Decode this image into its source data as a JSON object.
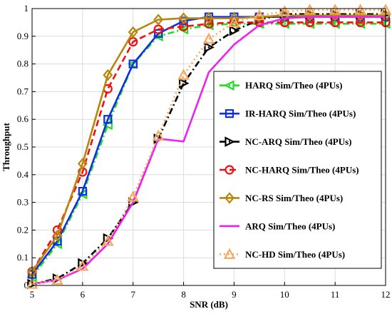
{
  "chart_data": {
    "type": "line",
    "xlabel": "SNR (dB)",
    "ylabel": "Throughput",
    "xlim": [
      5,
      12
    ],
    "ylim": [
      0,
      1
    ],
    "x_ticks": [
      5,
      6,
      7,
      8,
      9,
      10,
      11,
      12
    ],
    "y_ticks": [
      0,
      0.1,
      0.2,
      0.3,
      0.4,
      0.5,
      0.6,
      0.7,
      0.8,
      0.9,
      1
    ],
    "grid": true,
    "legend_position": "right",
    "series": [
      {
        "name": "HARQ Sim/Theo (4PUs)",
        "color": "#22dd22",
        "marker": "triangle-left",
        "dash": "dashdot",
        "x": [
          5,
          5.5,
          6,
          6.5,
          7,
          7.5,
          8,
          8.5,
          9,
          9.5,
          10,
          10.5,
          11,
          11.5,
          12
        ],
        "y": [
          0.03,
          0.15,
          0.33,
          0.58,
          0.8,
          0.9,
          0.925,
          0.94,
          0.945,
          0.945,
          0.945,
          0.945,
          0.945,
          0.945,
          0.945
        ]
      },
      {
        "name": "IR-HARQ Sim/Theo (4PUs)",
        "color": "#1030e0",
        "marker": "square",
        "dash": "solid",
        "x": [
          5,
          5.5,
          6,
          6.5,
          7,
          7.5,
          8,
          8.5,
          9,
          9.5,
          10,
          10.5,
          11,
          11.5,
          12
        ],
        "y": [
          0.04,
          0.16,
          0.34,
          0.6,
          0.8,
          0.91,
          0.955,
          0.97,
          0.97,
          0.97,
          0.97,
          0.97,
          0.97,
          0.97,
          0.97
        ]
      },
      {
        "name": "NC-ARQ Sim/Theo (4PUs)",
        "color": "#000000",
        "marker": "triangle-right",
        "dash": "dashdot",
        "x": [
          5,
          5.5,
          6,
          6.5,
          7,
          7.5,
          8,
          8.5,
          9,
          9.5,
          10,
          10.5,
          11,
          11.5,
          12
        ],
        "y": [
          0.005,
          0.025,
          0.08,
          0.17,
          0.3,
          0.53,
          0.73,
          0.86,
          0.92,
          0.96,
          0.98,
          0.98,
          0.98,
          0.98,
          0.98
        ]
      },
      {
        "name": "NC-HARQ Sim/Theo (4PUs)",
        "color": "#ee1111",
        "marker": "circle",
        "dash": "dashed",
        "x": [
          5,
          5.5,
          6,
          6.5,
          7,
          7.5,
          8,
          8.5,
          9,
          9.5,
          10,
          10.5,
          11,
          11.5,
          12
        ],
        "y": [
          0.05,
          0.2,
          0.41,
          0.71,
          0.88,
          0.925,
          0.935,
          0.945,
          0.95,
          0.95,
          0.95,
          0.95,
          0.95,
          0.95,
          0.95
        ]
      },
      {
        "name": "NC-RS Sim/Theo (4PUs)",
        "color": "#b8860b",
        "marker": "diamond",
        "dash": "solid",
        "x": [
          5,
          5.5,
          6,
          6.5,
          7,
          7.5,
          8,
          8.5,
          9,
          9.5,
          10,
          10.5,
          11,
          11.5,
          12
        ],
        "y": [
          0.05,
          0.18,
          0.44,
          0.76,
          0.915,
          0.96,
          0.965,
          0.965,
          0.965,
          0.97,
          0.975,
          0.975,
          0.975,
          0.975,
          0.975
        ]
      },
      {
        "name": "ARQ Sim/Theo (4PUs)",
        "color": "#ee22ee",
        "marker": "none",
        "dash": "solid",
        "x": [
          5,
          5.5,
          6,
          6.5,
          7,
          7.5,
          8,
          8.5,
          9,
          9.5,
          10,
          10.5,
          11,
          11.5,
          12
        ],
        "y": [
          0.005,
          0.02,
          0.06,
          0.15,
          0.3,
          0.53,
          0.52,
          0.77,
          0.87,
          0.94,
          0.965,
          0.97,
          0.97,
          0.97,
          0.97
        ]
      },
      {
        "name": "NC-HD Sim/Theo (4PUs)",
        "color": "#f5a860",
        "marker": "triangle-up",
        "dash": "dotted",
        "x": [
          5,
          5.5,
          6,
          6.5,
          7,
          7.5,
          8,
          8.5,
          9,
          9.5,
          10,
          10.5,
          11,
          11.5,
          12
        ],
        "y": [
          0.005,
          0.02,
          0.07,
          0.16,
          0.32,
          0.54,
          0.76,
          0.89,
          0.95,
          0.975,
          0.99,
          0.995,
          0.995,
          0.995,
          0.995
        ]
      }
    ]
  }
}
